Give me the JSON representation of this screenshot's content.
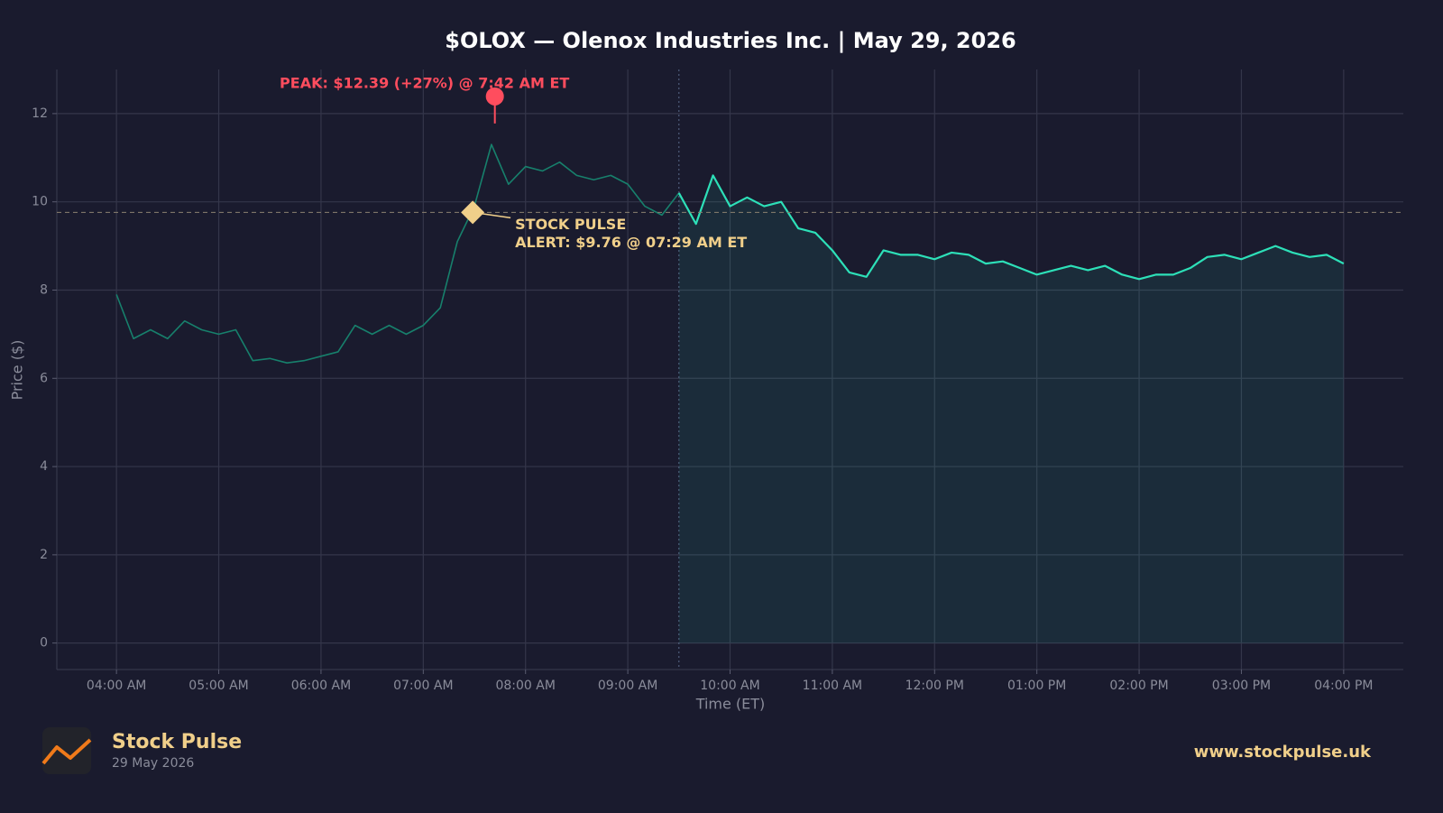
{
  "chart_data": {
    "type": "line",
    "title": "$OLOX — Olenox Industries Inc.  |  May 29, 2026",
    "x_label": "Time (ET)",
    "y_label": "Price ($)",
    "x": [
      "04:00 AM",
      "04:10 AM",
      "04:20 AM",
      "04:30 AM",
      "04:40 AM",
      "04:50 AM",
      "05:00 AM",
      "05:10 AM",
      "05:20 AM",
      "05:30 AM",
      "05:40 AM",
      "05:50 AM",
      "06:00 AM",
      "06:10 AM",
      "06:20 AM",
      "06:30 AM",
      "06:40 AM",
      "06:50 AM",
      "07:00 AM",
      "07:10 AM",
      "07:20 AM",
      "07:30 AM",
      "07:40 AM",
      "07:50 AM",
      "08:00 AM",
      "08:10 AM",
      "08:20 AM",
      "08:30 AM",
      "08:40 AM",
      "08:50 AM",
      "09:00 AM",
      "09:10 AM",
      "09:20 AM",
      "09:30 AM",
      "09:40 AM",
      "09:50 AM",
      "10:00 AM",
      "10:10 AM",
      "10:20 AM",
      "10:30 AM",
      "10:40 AM",
      "10:50 AM",
      "11:00 AM",
      "11:10 AM",
      "11:20 AM",
      "11:30 AM",
      "11:40 AM",
      "11:50 AM",
      "12:00 PM",
      "12:10 PM",
      "12:20 PM",
      "12:30 PM",
      "12:40 PM",
      "12:50 PM",
      "01:00 PM",
      "01:10 PM",
      "01:20 PM",
      "01:30 PM",
      "01:40 PM",
      "01:50 PM",
      "02:00 PM",
      "02:10 PM",
      "02:20 PM",
      "02:30 PM",
      "02:40 PM",
      "02:50 PM",
      "03:00 PM",
      "03:10 PM",
      "03:20 PM",
      "03:30 PM",
      "03:40 PM",
      "03:50 PM",
      "04:00 PM"
    ],
    "values": [
      7.9,
      6.9,
      7.1,
      6.9,
      7.3,
      7.1,
      7.0,
      7.1,
      6.4,
      6.45,
      6.35,
      6.4,
      6.5,
      6.6,
      7.2,
      7.0,
      7.2,
      7.0,
      7.2,
      7.6,
      9.1,
      9.9,
      11.3,
      10.4,
      10.8,
      10.7,
      10.9,
      10.6,
      10.5,
      10.6,
      10.4,
      9.9,
      9.7,
      10.2,
      9.5,
      10.6,
      9.9,
      10.1,
      9.9,
      10.0,
      9.4,
      9.3,
      8.9,
      8.4,
      8.3,
      8.9,
      8.8,
      8.8,
      8.7,
      8.85,
      8.8,
      8.6,
      8.65,
      8.5,
      8.35,
      8.45,
      8.55,
      8.45,
      8.55,
      8.35,
      8.25,
      8.35,
      8.35,
      8.5,
      8.75,
      8.8,
      8.7,
      8.85,
      9.0,
      8.85,
      8.75,
      8.8,
      8.6
    ],
    "regular_session_start": "09:30 AM",
    "color": "#2de0b8",
    "premarket_color": "#17806c",
    "xlim": [
      "03:25 AM",
      "04:35 PM"
    ],
    "xticks": [
      "04:00 AM",
      "05:00 AM",
      "06:00 AM",
      "07:00 AM",
      "08:00 AM",
      "09:00 AM",
      "10:00 AM",
      "11:00 AM",
      "12:00 PM",
      "01:00 PM",
      "02:00 PM",
      "03:00 PM",
      "04:00 PM"
    ],
    "ylim": [
      -0.6,
      13
    ],
    "yticks": [
      0,
      2,
      4,
      6,
      8,
      10,
      12
    ],
    "grid": true,
    "annotations": [
      {
        "text": "PEAK: $12.39 (+27%) @ 7:42 AM ET",
        "x": "07:42 AM",
        "y": 12.39,
        "color": "#ff4d5e"
      },
      {
        "text": [
          "STOCK PULSE",
          "ALERT: $9.76 @ 07:29 AM ET"
        ],
        "x": "07:29 AM",
        "y": 9.76,
        "color": "#f0cf8a"
      }
    ]
  },
  "footer": {
    "brand": "Stock Pulse",
    "date": "29 May 2026",
    "url": "www.stockpulse.uk"
  }
}
